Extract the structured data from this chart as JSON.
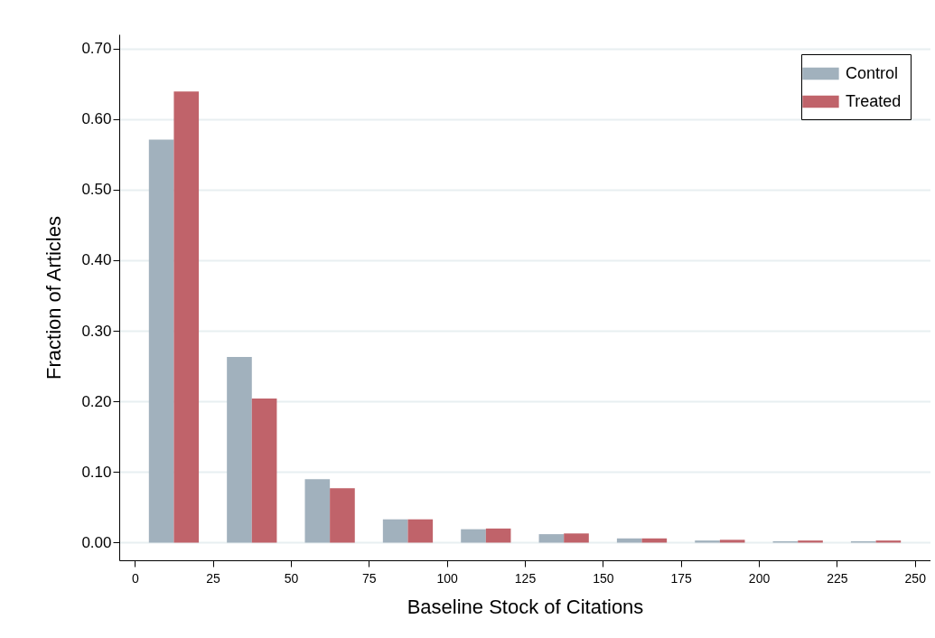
{
  "chart_data": {
    "type": "bar",
    "xlabel": "Baseline Stock of Citations",
    "ylabel": "Fraction of Articles",
    "series": [
      {
        "name": "Control",
        "color": "#a1b1bd",
        "x": [
          8.5,
          33.5,
          58.5,
          83.5,
          108.5,
          133.5,
          158.5,
          183.5,
          208.5,
          233.5
        ],
        "values": [
          0.571,
          0.263,
          0.09,
          0.033,
          0.019,
          0.012,
          0.006,
          0.003,
          0.002,
          0.002
        ]
      },
      {
        "name": "Treated",
        "color": "#c0636a",
        "x": [
          16.5,
          41.5,
          66.5,
          91.5,
          116.5,
          141.5,
          166.5,
          191.5,
          216.5,
          241.5
        ],
        "values": [
          0.639,
          0.204,
          0.077,
          0.033,
          0.02,
          0.013,
          0.006,
          0.004,
          0.003,
          0.003
        ]
      }
    ],
    "xlim": [
      -5,
      255
    ],
    "xticks": [
      0,
      25,
      50,
      75,
      100,
      125,
      150,
      175,
      200,
      225,
      250
    ],
    "ylim": [
      -0.025,
      0.72
    ],
    "yticks": [
      {
        "value": 0,
        "label": "0.00"
      },
      {
        "value": 0.1,
        "label": "0.10"
      },
      {
        "value": 0.2,
        "label": "0.20"
      },
      {
        "value": 0.3,
        "label": "0.30"
      },
      {
        "value": 0.4,
        "label": "0.40"
      },
      {
        "value": 0.5,
        "label": "0.50"
      },
      {
        "value": 0.6,
        "label": "0.60"
      },
      {
        "value": 0.7,
        "label": "0.70"
      }
    ],
    "grid": "y",
    "legend": "top right"
  }
}
